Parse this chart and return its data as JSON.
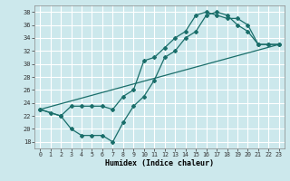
{
  "xlabel": "Humidex (Indice chaleur)",
  "bg_color": "#cce8ec",
  "grid_color": "#ffffff",
  "line_color": "#1a6e6a",
  "xlim": [
    -0.5,
    23.5
  ],
  "ylim": [
    17,
    39
  ],
  "yticks": [
    18,
    20,
    22,
    24,
    26,
    28,
    30,
    32,
    34,
    36,
    38
  ],
  "xticks": [
    0,
    1,
    2,
    3,
    4,
    5,
    6,
    7,
    8,
    9,
    10,
    11,
    12,
    13,
    14,
    15,
    16,
    17,
    18,
    19,
    20,
    21,
    22,
    23
  ],
  "line1_x": [
    0,
    1,
    2,
    3,
    4,
    5,
    6,
    7,
    8,
    9,
    10,
    11,
    12,
    13,
    14,
    15,
    16,
    17,
    18,
    19,
    20,
    21,
    22,
    23
  ],
  "line1_y": [
    23,
    22.5,
    22,
    20,
    19,
    19,
    19,
    18,
    21,
    23.5,
    25,
    27.5,
    31,
    32,
    34,
    35,
    37.5,
    38,
    37.5,
    36,
    35,
    33,
    33,
    33
  ],
  "line2_x": [
    0,
    2,
    3,
    4,
    5,
    6,
    7,
    8,
    9,
    10,
    11,
    12,
    13,
    14,
    15,
    16,
    17,
    18,
    19,
    20,
    21,
    22,
    23
  ],
  "line2_y": [
    23,
    22,
    23.5,
    23.5,
    23.5,
    23.5,
    23,
    25,
    26,
    30.5,
    31,
    32.5,
    34,
    35,
    37.5,
    38,
    37.5,
    37,
    37,
    36,
    33,
    33,
    33
  ],
  "line3_x": [
    0,
    23
  ],
  "line3_y": [
    23,
    33
  ]
}
